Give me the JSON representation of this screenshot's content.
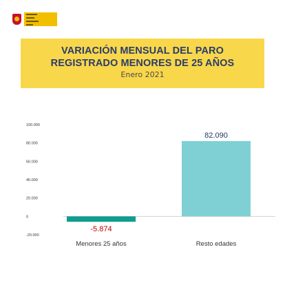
{
  "header": {
    "title_line1": "VARIACIÓN MENSUAL DEL PARO",
    "title_line2": "REGISTRADO MENORES DE 25 AÑOS",
    "subtitle": "Enero 2021"
  },
  "colors": {
    "banner": "#f9d74a",
    "title": "#2a3c6e",
    "negative_bar": "#0f9c8f",
    "positive_bar": "#7fd0d4",
    "negative_label": "#c00000",
    "positive_label": "#1f3864"
  },
  "chart_data": {
    "type": "bar",
    "categories": [
      "Menores 25 años",
      "Resto edades"
    ],
    "values": [
      -5874,
      82090
    ],
    "data_labels": [
      "-5.874",
      "82.090"
    ],
    "yticks": [
      "100.000",
      "80.000",
      "60.000",
      "40.000",
      "20.000",
      "0",
      "-20.000"
    ],
    "ytick_values": [
      100000,
      80000,
      60000,
      40000,
      20000,
      0,
      -20000
    ],
    "ylim": [
      -20000,
      100000
    ],
    "grid": false,
    "legend": "none"
  }
}
